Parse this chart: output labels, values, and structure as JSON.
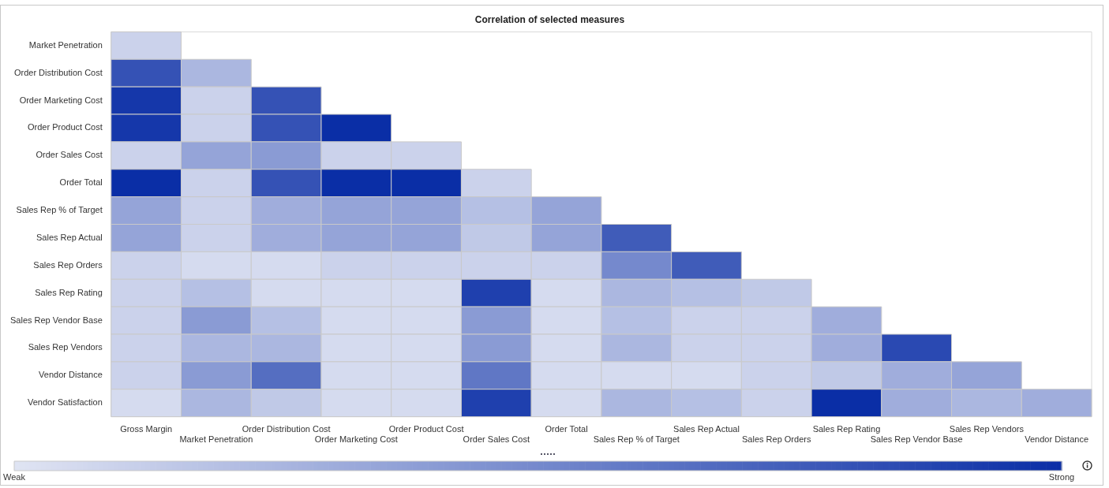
{
  "chart_data": {
    "type": "heatmap",
    "title": "Correlation of selected measures",
    "categories": [
      "Gross Margin",
      "Market Penetration",
      "Order Distribution Cost",
      "Order Marketing Cost",
      "Order Product Cost",
      "Order Sales Cost",
      "Order Total",
      "Sales Rep % of Target",
      "Sales Rep Actual",
      "Sales Rep Orders",
      "Sales Rep Rating",
      "Sales Rep Vendor Base",
      "Sales Rep Vendors",
      "Vendor Distance"
    ],
    "y_categories": [
      "Market Penetration",
      "Order Distribution Cost",
      "Order Marketing Cost",
      "Order Product Cost",
      "Order Sales Cost",
      "Order Total",
      "Sales Rep % of Target",
      "Sales Rep Actual",
      "Sales Rep Orders",
      "Sales Rep Rating",
      "Sales Rep Vendor Base",
      "Sales Rep Vendors",
      "Vendor Distance",
      "Vendor Satisfaction"
    ],
    "cells": [
      [
        0.1,
        null,
        null,
        null,
        null,
        null,
        null,
        null,
        null,
        null,
        null,
        null,
        null,
        null
      ],
      [
        0.8,
        0.25,
        null,
        null,
        null,
        null,
        null,
        null,
        null,
        null,
        null,
        null,
        null,
        null
      ],
      [
        0.95,
        0.1,
        0.8,
        null,
        null,
        null,
        null,
        null,
        null,
        null,
        null,
        null,
        null,
        null
      ],
      [
        0.95,
        0.1,
        0.8,
        1,
        null,
        null,
        null,
        null,
        null,
        null,
        null,
        null,
        null,
        null
      ],
      [
        0.1,
        0.35,
        0.4,
        0.1,
        0.1,
        null,
        null,
        null,
        null,
        null,
        null,
        null,
        null,
        null
      ],
      [
        1,
        0.1,
        0.8,
        1,
        1,
        0.1,
        null,
        null,
        null,
        null,
        null,
        null,
        null,
        null
      ],
      [
        0.35,
        0.1,
        0.3,
        0.35,
        0.35,
        0.2,
        0.35,
        null,
        null,
        null,
        null,
        null,
        null,
        null
      ],
      [
        0.35,
        0.1,
        0.3,
        0.35,
        0.35,
        0.15,
        0.35,
        0.75,
        null,
        null,
        null,
        null,
        null,
        null
      ],
      [
        0.1,
        0.05,
        0.05,
        0.1,
        0.1,
        0.1,
        0.1,
        0.5,
        0.75,
        null,
        null,
        null,
        null,
        null
      ],
      [
        0.1,
        0.2,
        0.05,
        0.05,
        0.05,
        0.9,
        0.05,
        0.25,
        0.2,
        0.15,
        null,
        null,
        null,
        null
      ],
      [
        0.1,
        0.4,
        0.2,
        0.05,
        0.05,
        0.4,
        0.05,
        0.2,
        0.1,
        0.1,
        0.3,
        null,
        null,
        null
      ],
      [
        0.1,
        0.25,
        0.25,
        0.05,
        0.05,
        0.4,
        0.05,
        0.25,
        0.1,
        0.1,
        0.3,
        0.85,
        null,
        null
      ],
      [
        0.1,
        0.4,
        0.65,
        0.05,
        0.05,
        0.6,
        0.05,
        0.05,
        0.05,
        0.1,
        0.15,
        0.3,
        0.35,
        null
      ],
      [
        0.05,
        0.25,
        0.15,
        0.05,
        0.05,
        0.9,
        0.05,
        0.25,
        0.2,
        0.1,
        1,
        0.3,
        0.25,
        0.3
      ]
    ],
    "clim": [
      0,
      1
    ],
    "cticks": [
      {
        "value": 0,
        "label": "Weak"
      },
      {
        "value": 1,
        "label": "Strong"
      }
    ]
  }
}
